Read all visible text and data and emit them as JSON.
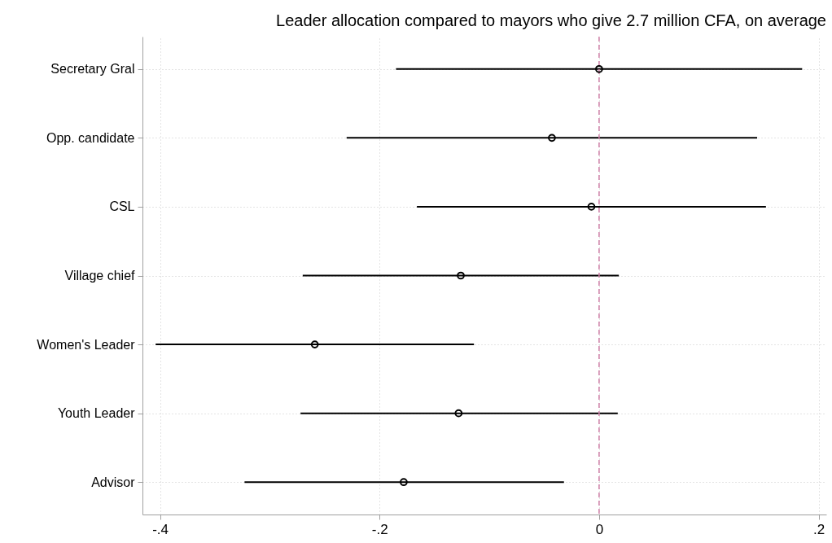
{
  "chart_data": {
    "type": "scatter",
    "title": "Leader allocation compared to mayors who give 2.7 million CFA, on average",
    "orientation": "horizontal",
    "categories": [
      "Secretary Gral",
      "Opp. candidate",
      "CSL",
      "Village chief",
      "Women's Leader",
      "Youth Leader",
      "Advisor"
    ],
    "values": [
      0.0,
      -0.043,
      -0.007,
      -0.126,
      -0.259,
      -0.128,
      -0.178
    ],
    "errors": [
      [
        -0.185,
        0.185
      ],
      [
        -0.23,
        0.144
      ],
      [
        -0.166,
        0.152
      ],
      [
        -0.27,
        0.018
      ],
      [
        -0.404,
        -0.114
      ],
      [
        -0.272,
        0.017
      ],
      [
        -0.323,
        -0.032
      ]
    ],
    "color": "#000000",
    "marker": "circle",
    "xlim": [
      -0.416,
      0.207
    ],
    "xticks": [
      {
        "value": -0.4,
        "label": "-.4"
      },
      {
        "value": -0.2,
        "label": "-.2"
      },
      0,
      {
        "value": 0.2,
        "label": ".2"
      }
    ],
    "grid": true,
    "ref_lines": [
      {
        "axis": "x",
        "value": 0,
        "color": "#d080a8",
        "line_style": "dashed"
      }
    ]
  }
}
